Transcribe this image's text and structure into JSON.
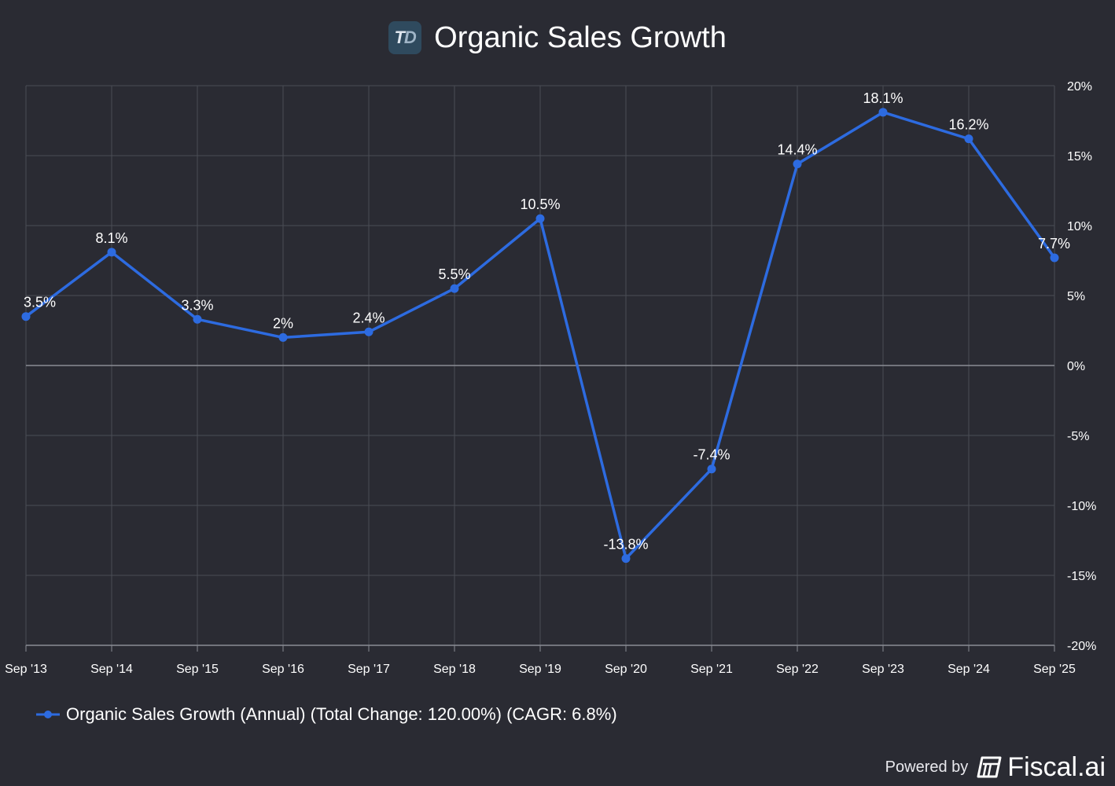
{
  "header": {
    "logo_text_t": "T",
    "logo_text_d": "D",
    "title": "Organic Sales Growth"
  },
  "colors": {
    "background": "#2a2b33",
    "line": "#2d6be0",
    "grid": "#4a4c55",
    "zero_line": "#8a8c94",
    "text": "#ffffff"
  },
  "chart_data": {
    "type": "line",
    "title": "Organic Sales Growth",
    "xlabel": "",
    "ylabel": "",
    "categories": [
      "Sep '13",
      "Sep '14",
      "Sep '15",
      "Sep '16",
      "Sep '17",
      "Sep '18",
      "Sep '19",
      "Sep '20",
      "Sep '21",
      "Sep '22",
      "Sep '23",
      "Sep '24",
      "Sep '25"
    ],
    "series": [
      {
        "name": "Organic Sales Growth (Annual)",
        "values": [
          3.5,
          8.1,
          3.3,
          2.0,
          2.4,
          5.5,
          10.5,
          -13.8,
          -7.4,
          14.4,
          18.1,
          16.2,
          7.7
        ],
        "labels": [
          "3.5%",
          "8.1%",
          "3.3%",
          "2%",
          "2.4%",
          "5.5%",
          "10.5%",
          "-13.8%",
          "-7.4%",
          "14.4%",
          "18.1%",
          "16.2%",
          "7.7%"
        ]
      }
    ],
    "ylim": [
      -20,
      20
    ],
    "yticks": [
      20,
      15,
      10,
      5,
      0,
      -5,
      -10,
      -15,
      -20
    ],
    "ytick_labels": [
      "20%",
      "15%",
      "10%",
      "5%",
      "0%",
      "-5%",
      "-10%",
      "-15%",
      "-20%"
    ],
    "y_axis_side": "right",
    "grid": true,
    "legend_position": "bottom-left"
  },
  "legend": {
    "label": "Organic Sales Growth (Annual) (Total Change: 120.00%) (CAGR: 6.8%)"
  },
  "footer": {
    "powered_by": "Powered by",
    "brand": "Fiscal.ai"
  }
}
